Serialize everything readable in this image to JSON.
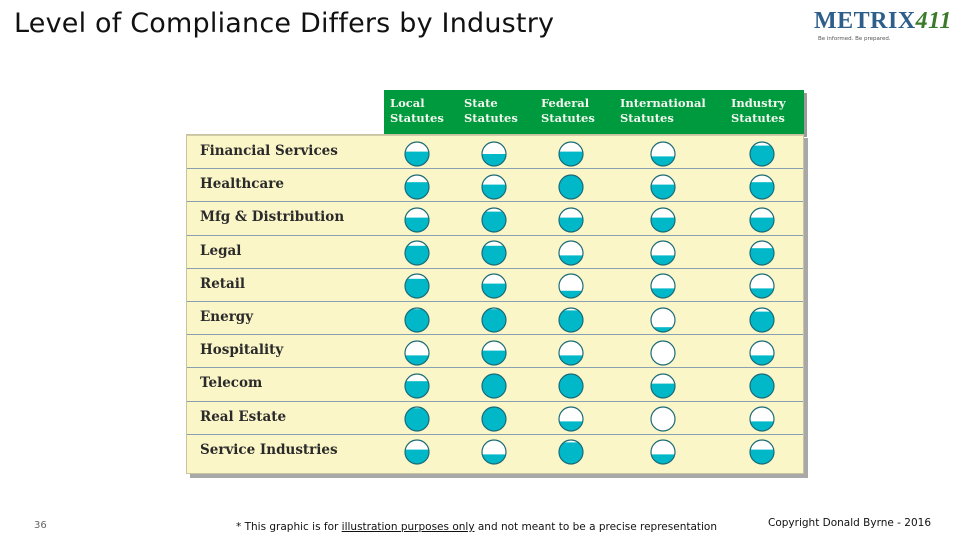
{
  "title": "Level of Compliance Differs by Industry",
  "logo": {
    "word_start": "METRIX",
    "word_number": "411",
    "tagline": "Be informed. Be prepared."
  },
  "colors": {
    "header_green": "#009a3e",
    "panel_yellow": "#fbf6c8",
    "fill_teal": "#00b8c8",
    "circle_outline": "#1a6a78"
  },
  "table": {
    "columns": [
      "Local\nStatutes",
      "State\nStatutes",
      "Federal\nStatutes",
      "International\nStatutes",
      "Industry\nStatutes"
    ],
    "rows": [
      {
        "label": "Financial Services",
        "levels": [
          0.6,
          0.5,
          0.6,
          0.4,
          0.85
        ]
      },
      {
        "label": "Healthcare",
        "levels": [
          0.7,
          0.6,
          1.0,
          0.6,
          0.7
        ]
      },
      {
        "label": "Mfg & Distribution",
        "levels": [
          0.6,
          0.85,
          0.6,
          0.6,
          0.6
        ]
      },
      {
        "label": "Legal",
        "levels": [
          0.8,
          0.8,
          0.4,
          0.4,
          0.7
        ]
      },
      {
        "label": "Retail",
        "levels": [
          0.8,
          0.6,
          0.3,
          0.4,
          0.4
        ]
      },
      {
        "label": "Energy",
        "levels": [
          0.95,
          0.95,
          0.9,
          0.2,
          0.85
        ]
      },
      {
        "label": "Hospitality",
        "levels": [
          0.4,
          0.6,
          0.4,
          0.0,
          0.4
        ]
      },
      {
        "label": "Telecom",
        "levels": [
          0.7,
          1.0,
          1.0,
          0.6,
          1.0
        ]
      },
      {
        "label": "Real Estate",
        "levels": [
          0.95,
          1.0,
          0.4,
          0.0,
          0.4
        ]
      },
      {
        "label": "Service Industries",
        "levels": [
          0.6,
          0.4,
          0.9,
          0.4,
          0.6
        ]
      }
    ]
  },
  "footer": {
    "page_number": "36",
    "footnote_pre": "* This graphic is for ",
    "footnote_underlined": "illustration purposes only",
    "footnote_post": " and not meant to be a precise representation",
    "copyright": "Copyright Donald Byrne - 2016"
  }
}
